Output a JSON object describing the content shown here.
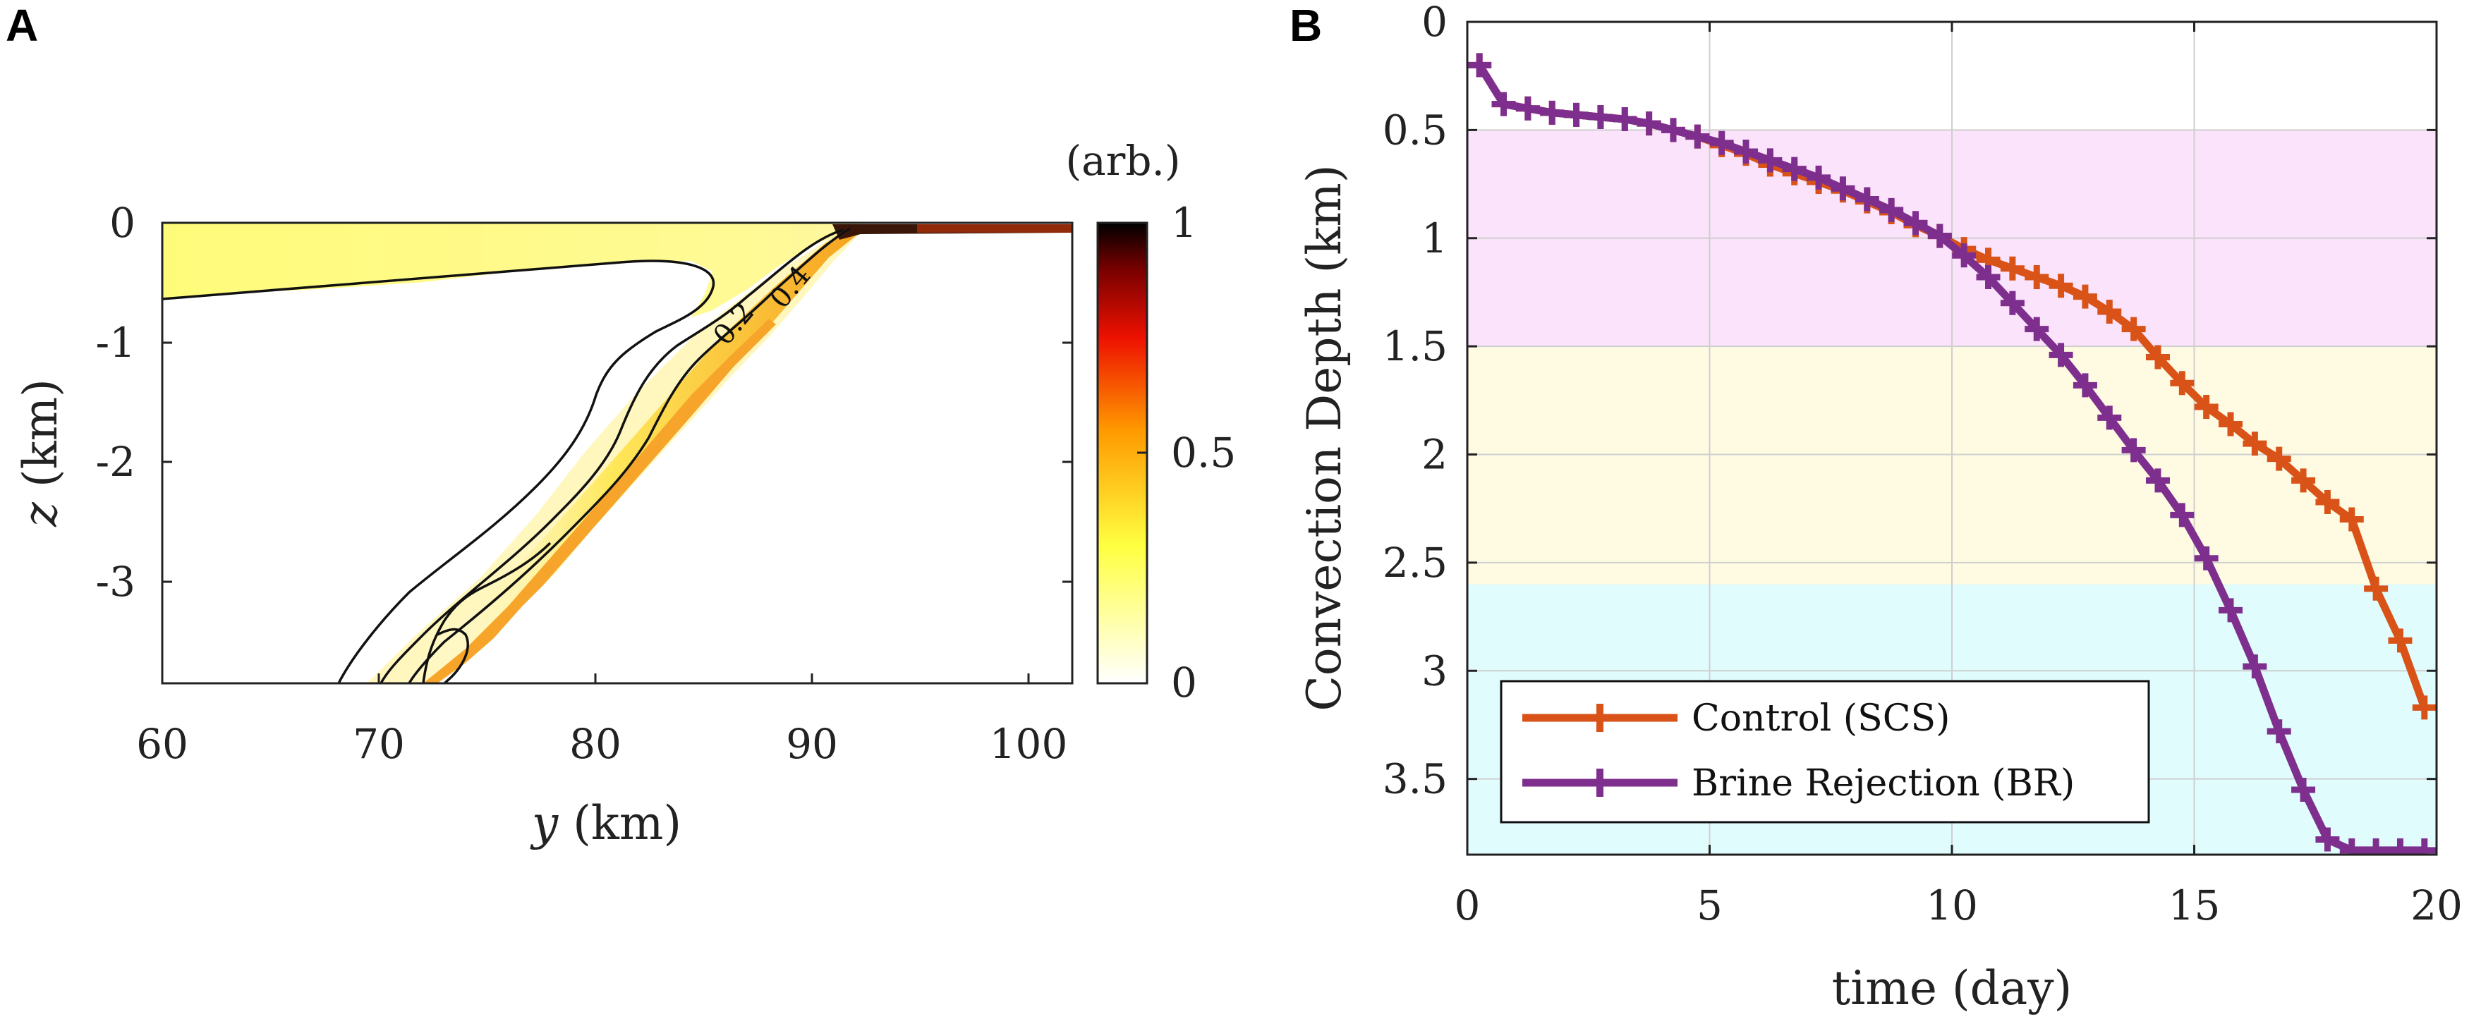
{
  "panel_a": {
    "label": "A",
    "xlabel_var": "y",
    "xlabel_unit": " (km)",
    "ylabel_var": "z",
    "ylabel_unit": " (km)",
    "colorbar_unit": "(arb.)",
    "colorbar_ticks": [
      "0",
      "0.5",
      "1"
    ],
    "x_ticks": [
      "60",
      "70",
      "80",
      "90",
      "100"
    ],
    "y_ticks": [
      "0",
      "-1",
      "-2",
      "-3"
    ],
    "contour_labels": [
      "0.2",
      "0.4"
    ]
  },
  "panel_b": {
    "label": "B",
    "legend": {
      "control": "Control (SCS)",
      "brine": "Brine Rejection (BR)"
    }
  },
  "chart_data": [
    {
      "type": "heatmap",
      "title": "",
      "xlabel": "y (km)",
      "ylabel": "z (km)",
      "xlim": [
        60,
        102
      ],
      "ylim": [
        -3.85,
        0
      ],
      "colorbar": {
        "label": "(arb.)",
        "range": [
          0,
          1
        ],
        "ticks": [
          0,
          0.5,
          1
        ],
        "colormap": "hot (reversed)"
      },
      "contour_levels": [
        0.2,
        0.4
      ],
      "description_values": {
        "surface_layer_depth_km": -0.65,
        "slope_top_y_km": 92,
        "slope_bottom_y_km": 72
      }
    },
    {
      "type": "line",
      "title": "",
      "xlabel": "time (day)",
      "ylabel": "Convection Depth (km)",
      "xlim": [
        0,
        20
      ],
      "ylim": [
        3.85,
        0
      ],
      "x_ticks": [
        "0",
        "5",
        "10",
        "15",
        "20"
      ],
      "y_ticks": [
        "0",
        "0.5",
        "1",
        "1.5",
        "2",
        "2.5",
        "3",
        "3.5"
      ],
      "bands": [
        {
          "from": 0.5,
          "to": 1.5,
          "color": "#fbe3fb"
        },
        {
          "from": 1.5,
          "to": 2.6,
          "color": "#fefbe2"
        },
        {
          "from": 2.6,
          "to": 3.85,
          "color": "#e1fcfd"
        }
      ],
      "series": [
        {
          "name": "Control (SCS)",
          "color": "#d95319",
          "x": [
            0.25,
            0.75,
            1.25,
            1.75,
            2.25,
            2.75,
            3.25,
            3.75,
            4.25,
            4.75,
            5.25,
            5.75,
            6.25,
            6.75,
            7.25,
            7.75,
            8.25,
            8.75,
            9.25,
            9.75,
            10.25,
            10.75,
            11.25,
            11.75,
            12.25,
            12.75,
            13.25,
            13.75,
            14.25,
            14.75,
            15.25,
            15.75,
            16.25,
            16.75,
            17.25,
            17.75,
            18.25,
            18.75,
            19.25,
            19.75
          ],
          "y": [
            0.2,
            0.38,
            0.4,
            0.42,
            0.43,
            0.44,
            0.45,
            0.47,
            0.5,
            0.53,
            0.57,
            0.61,
            0.66,
            0.7,
            0.74,
            0.78,
            0.83,
            0.88,
            0.94,
            0.99,
            1.05,
            1.1,
            1.14,
            1.18,
            1.22,
            1.27,
            1.34,
            1.42,
            1.55,
            1.67,
            1.78,
            1.86,
            1.95,
            2.02,
            2.12,
            2.22,
            2.3,
            2.62,
            2.86,
            3.17
          ]
        },
        {
          "name": "Brine Rejection (BR)",
          "color": "#7e2f8e",
          "x": [
            0.25,
            0.75,
            1.25,
            1.75,
            2.25,
            2.75,
            3.25,
            3.75,
            4.25,
            4.75,
            5.25,
            5.75,
            6.25,
            6.75,
            7.25,
            7.75,
            8.25,
            8.75,
            9.25,
            9.75,
            10.25,
            10.75,
            11.25,
            11.75,
            12.25,
            12.75,
            13.25,
            13.75,
            14.25,
            14.75,
            15.25,
            15.75,
            16.25,
            16.75,
            17.25,
            17.75,
            18.25,
            18.75,
            19.25,
            19.75
          ],
          "y": [
            0.2,
            0.38,
            0.4,
            0.42,
            0.43,
            0.44,
            0.45,
            0.47,
            0.5,
            0.53,
            0.56,
            0.6,
            0.64,
            0.68,
            0.72,
            0.77,
            0.82,
            0.87,
            0.93,
            0.99,
            1.08,
            1.18,
            1.3,
            1.42,
            1.54,
            1.68,
            1.83,
            1.98,
            2.12,
            2.28,
            2.48,
            2.72,
            2.98,
            3.28,
            3.55,
            3.78,
            3.83,
            3.83,
            3.83,
            3.83
          ]
        }
      ]
    }
  ]
}
